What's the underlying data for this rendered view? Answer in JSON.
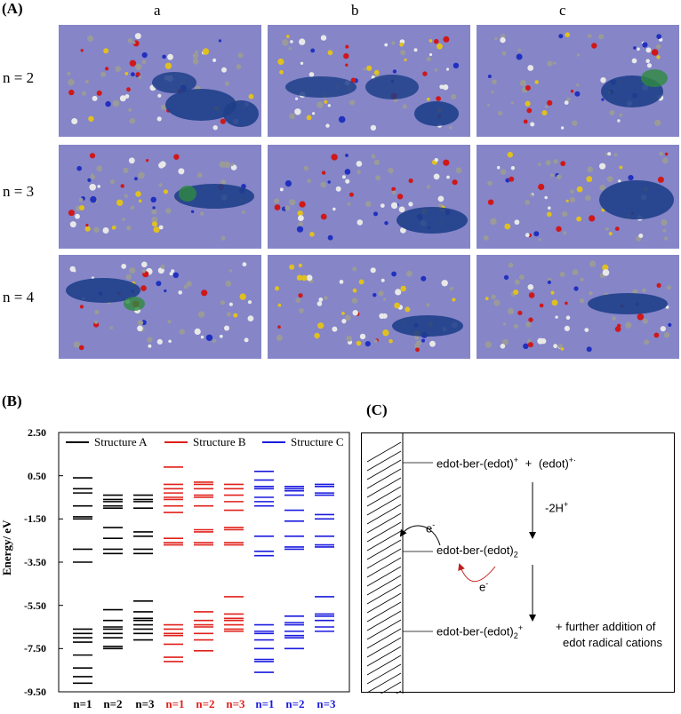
{
  "panelA": {
    "label": "(A)",
    "columns": [
      "a",
      "b",
      "c"
    ],
    "rows": [
      "n = 2",
      "n = 3",
      "n = 4"
    ]
  },
  "panelB": {
    "label": "(B)"
  },
  "panelC": {
    "label": "(C)",
    "species1": "edot-ber-(edot)",
    "species1_sup": "+",
    "plus": "+",
    "species1b": "(edot)",
    "species1b_sup": "+·",
    "step": "-2H",
    "step_sup": "+",
    "electron1": "e",
    "electron1_sup": "-",
    "species2": "edot-ber-(edot)",
    "species2_sub": "2",
    "electron2": "e",
    "electron2_sup": "-",
    "species3": "edot-ber-(edot)",
    "species3_sub": "2",
    "species3_sup": "+",
    "note_line1": "+ further addition of",
    "note_line2": "edot radical cations"
  },
  "chart_data": {
    "type": "energy-level diagram",
    "ylabel": "Energy/ eV",
    "ylim": [
      -9.5,
      2.5
    ],
    "yticks": [
      "2.50",
      "0.50",
      "-1.50",
      "-3.50",
      "-5.50",
      "-7.50",
      "-9.50"
    ],
    "legend": [
      "Structure A",
      "Structure B",
      "Structure C"
    ],
    "colors": {
      "A": "#000000",
      "B": "#e0201a",
      "C": "#1a1ae0"
    },
    "columns": [
      {
        "label": "n=1",
        "series": "A",
        "levels": [
          0.4,
          -0.1,
          -0.3,
          -0.9,
          -1.4,
          -1.5,
          -2.9,
          -3.5,
          -6.6,
          -6.8,
          -7.0,
          -7.2,
          -7.8,
          -8.4,
          -8.8,
          -9.1
        ]
      },
      {
        "label": "n=2",
        "series": "A",
        "levels": [
          -0.4,
          -0.6,
          -0.7,
          -0.9,
          -1.0,
          -1.9,
          -2.4,
          -2.9,
          -3.1,
          -5.7,
          -6.2,
          -6.5,
          -6.6,
          -6.8,
          -7.0,
          -7.4,
          -7.5
        ]
      },
      {
        "label": "n=3",
        "series": "A",
        "levels": [
          -0.4,
          -0.6,
          -0.7,
          -1.0,
          -2.1,
          -2.3,
          -2.9,
          -3.1,
          -5.3,
          -5.8,
          -6.1,
          -6.2,
          -6.4,
          -6.6,
          -6.8,
          -7.1
        ]
      },
      {
        "label": "n=1",
        "series": "B",
        "levels": [
          0.9,
          0.1,
          -0.1,
          -0.3,
          -0.5,
          -0.6,
          -0.9,
          -1.2,
          -2.4,
          -2.6,
          -2.7,
          -6.4,
          -6.6,
          -6.8,
          -6.9,
          -7.3,
          -7.9,
          -8.1
        ]
      },
      {
        "label": "n=2",
        "series": "B",
        "levels": [
          0.2,
          0.1,
          -0.1,
          -0.4,
          -0.5,
          -0.9,
          -2.0,
          -2.1,
          -2.6,
          -2.7,
          -5.8,
          -6.2,
          -6.4,
          -6.5,
          -6.8,
          -7.1,
          -7.6
        ]
      },
      {
        "label": "n=3",
        "series": "B",
        "levels": [
          0.1,
          -0.1,
          -0.4,
          -0.7,
          -1.1,
          -1.9,
          -2.0,
          -2.6,
          -2.7,
          -5.1,
          -5.9,
          -6.1,
          -6.2,
          -6.4,
          -6.6,
          -6.7
        ]
      },
      {
        "label": "n=1",
        "series": "C",
        "levels": [
          0.7,
          0.3,
          0.0,
          -0.1,
          -0.5,
          -0.7,
          -0.9,
          -2.3,
          -3.0,
          -3.2,
          -6.4,
          -6.7,
          -6.8,
          -7.1,
          -7.5,
          -8.0,
          -8.1,
          -8.6
        ]
      },
      {
        "label": "n=2",
        "series": "C",
        "levels": [
          0.0,
          -0.1,
          -0.2,
          -0.4,
          -1.1,
          -1.6,
          -2.3,
          -2.8,
          -2.9,
          -6.0,
          -6.3,
          -6.4,
          -6.7,
          -6.9,
          -7.0,
          -7.5
        ]
      },
      {
        "label": "n=3",
        "series": "C",
        "levels": [
          0.1,
          0.0,
          -0.3,
          -0.4,
          -1.3,
          -1.5,
          -2.3,
          -2.7,
          -2.8,
          -5.1,
          -5.9,
          -6.0,
          -6.2,
          -6.5,
          -6.7
        ]
      }
    ]
  }
}
